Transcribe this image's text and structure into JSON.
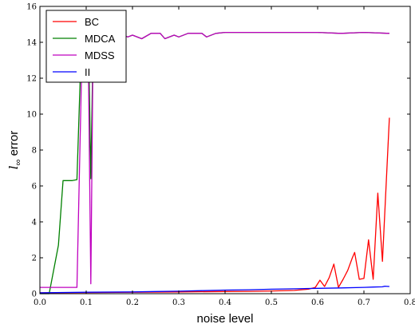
{
  "chart_data": {
    "type": "line",
    "xlabel": "noise level",
    "ylabel_main": "l",
    "ylabel_sub": "∞",
    "ylabel_rest": " error",
    "xlim": [
      0.0,
      0.8
    ],
    "ylim": [
      0,
      16
    ],
    "xticks": [
      0.0,
      0.1,
      0.2,
      0.3,
      0.4,
      0.5,
      0.6,
      0.7,
      0.8
    ],
    "xtick_labels": [
      "0.0",
      "0.1",
      "0.2",
      "0.3",
      "0.4",
      "0.5",
      "0.6",
      "0.7",
      "0.8"
    ],
    "yticks": [
      0,
      2,
      4,
      6,
      8,
      10,
      12,
      14,
      16
    ],
    "ytick_labels": [
      "0",
      "2",
      "4",
      "6",
      "8",
      "10",
      "12",
      "14",
      "16"
    ],
    "legend_position": "top-left",
    "series": [
      {
        "name": "BC",
        "color": "#ff0000",
        "points": [
          [
            0.0,
            0.05
          ],
          [
            0.1,
            0.06
          ],
          [
            0.2,
            0.08
          ],
          [
            0.3,
            0.1
          ],
          [
            0.4,
            0.12
          ],
          [
            0.45,
            0.13
          ],
          [
            0.5,
            0.15
          ],
          [
            0.55,
            0.18
          ],
          [
            0.58,
            0.25
          ],
          [
            0.595,
            0.35
          ],
          [
            0.605,
            0.75
          ],
          [
            0.615,
            0.4
          ],
          [
            0.625,
            0.9
          ],
          [
            0.635,
            1.65
          ],
          [
            0.645,
            0.35
          ],
          [
            0.655,
            0.8
          ],
          [
            0.665,
            1.3
          ],
          [
            0.675,
            2.0
          ],
          [
            0.68,
            2.3
          ],
          [
            0.69,
            0.8
          ],
          [
            0.7,
            0.85
          ],
          [
            0.71,
            3.0
          ],
          [
            0.72,
            0.8
          ],
          [
            0.73,
            5.6
          ],
          [
            0.74,
            1.8
          ],
          [
            0.755,
            9.8
          ]
        ]
      },
      {
        "name": "MDCA",
        "color": "#008000",
        "points": [
          [
            0.0,
            0.0
          ],
          [
            0.02,
            0.0
          ],
          [
            0.04,
            2.7
          ],
          [
            0.05,
            6.3
          ],
          [
            0.07,
            6.3
          ],
          [
            0.08,
            6.35
          ],
          [
            0.09,
            14.3
          ],
          [
            0.1,
            14.5
          ],
          [
            0.105,
            14.4
          ],
          [
            0.11,
            6.4
          ],
          [
            0.115,
            14.2
          ],
          [
            0.12,
            14.4
          ],
          [
            0.13,
            14.3
          ],
          [
            0.15,
            14.4
          ],
          [
            0.17,
            14.2
          ],
          [
            0.18,
            14.4
          ],
          [
            0.19,
            14.3
          ],
          [
            0.2,
            14.4
          ],
          [
            0.22,
            14.2
          ],
          [
            0.24,
            14.5
          ],
          [
            0.26,
            14.5
          ],
          [
            0.27,
            14.2
          ],
          [
            0.29,
            14.4
          ],
          [
            0.3,
            14.3
          ],
          [
            0.32,
            14.5
          ],
          [
            0.34,
            14.5
          ],
          [
            0.35,
            14.5
          ],
          [
            0.36,
            14.3
          ],
          [
            0.38,
            14.5
          ],
          [
            0.4,
            14.55
          ],
          [
            0.45,
            14.55
          ],
          [
            0.5,
            14.55
          ],
          [
            0.55,
            14.55
          ],
          [
            0.6,
            14.55
          ],
          [
            0.65,
            14.5
          ],
          [
            0.7,
            14.55
          ],
          [
            0.755,
            14.5
          ]
        ]
      },
      {
        "name": "MDSS",
        "color": "#bf00bf",
        "points": [
          [
            0.0,
            0.35
          ],
          [
            0.02,
            0.35
          ],
          [
            0.04,
            0.35
          ],
          [
            0.06,
            0.35
          ],
          [
            0.08,
            0.35
          ],
          [
            0.09,
            12.3
          ],
          [
            0.095,
            14.5
          ],
          [
            0.105,
            12.2
          ],
          [
            0.11,
            0.55
          ],
          [
            0.115,
            14.2
          ],
          [
            0.12,
            14.4
          ],
          [
            0.13,
            14.3
          ],
          [
            0.15,
            14.4
          ],
          [
            0.17,
            14.2
          ],
          [
            0.18,
            14.4
          ],
          [
            0.19,
            14.3
          ],
          [
            0.2,
            14.4
          ],
          [
            0.22,
            14.2
          ],
          [
            0.24,
            14.5
          ],
          [
            0.26,
            14.5
          ],
          [
            0.27,
            14.2
          ],
          [
            0.29,
            14.4
          ],
          [
            0.3,
            14.3
          ],
          [
            0.32,
            14.5
          ],
          [
            0.34,
            14.5
          ],
          [
            0.35,
            14.5
          ],
          [
            0.36,
            14.3
          ],
          [
            0.38,
            14.5
          ],
          [
            0.4,
            14.55
          ],
          [
            0.45,
            14.55
          ],
          [
            0.5,
            14.55
          ],
          [
            0.55,
            14.55
          ],
          [
            0.6,
            14.55
          ],
          [
            0.65,
            14.5
          ],
          [
            0.7,
            14.55
          ],
          [
            0.755,
            14.5
          ]
        ]
      },
      {
        "name": "II",
        "color": "#0000ff",
        "points": [
          [
            0.0,
            0.05
          ],
          [
            0.1,
            0.08
          ],
          [
            0.2,
            0.1
          ],
          [
            0.25,
            0.12
          ],
          [
            0.3,
            0.14
          ],
          [
            0.35,
            0.17
          ],
          [
            0.4,
            0.2
          ],
          [
            0.45,
            0.22
          ],
          [
            0.5,
            0.25
          ],
          [
            0.55,
            0.27
          ],
          [
            0.6,
            0.3
          ],
          [
            0.65,
            0.32
          ],
          [
            0.7,
            0.35
          ],
          [
            0.72,
            0.37
          ],
          [
            0.74,
            0.38
          ],
          [
            0.745,
            0.42
          ],
          [
            0.755,
            0.4
          ]
        ]
      }
    ]
  }
}
